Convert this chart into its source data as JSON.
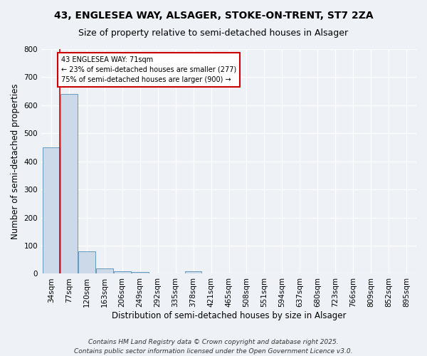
{
  "title": "43, ENGLESEA WAY, ALSAGER, STOKE-ON-TRENT, ST7 2ZA",
  "subtitle": "Size of property relative to semi-detached houses in Alsager",
  "xlabel": "Distribution of semi-detached houses by size in Alsager",
  "ylabel": "Number of semi-detached properties",
  "categories": [
    "34sqm",
    "77sqm",
    "120sqm",
    "163sqm",
    "206sqm",
    "249sqm",
    "292sqm",
    "335sqm",
    "378sqm",
    "421sqm",
    "465sqm",
    "508sqm",
    "551sqm",
    "594sqm",
    "637sqm",
    "680sqm",
    "723sqm",
    "766sqm",
    "809sqm",
    "852sqm",
    "895sqm"
  ],
  "values": [
    450,
    640,
    80,
    20,
    10,
    5,
    0,
    0,
    10,
    0,
    0,
    0,
    0,
    0,
    0,
    0,
    0,
    0,
    0,
    0,
    0
  ],
  "bar_color": "#ccd9e8",
  "bar_edge_color": "#6699bb",
  "vline_x": 0.5,
  "annotation_text": "43 ENGLESEA WAY: 71sqm\n← 23% of semi-detached houses are smaller (277)\n75% of semi-detached houses are larger (900) →",
  "annotation_box_color": "#ffffff",
  "annotation_box_edge": "#cc0000",
  "vline_color": "#cc0000",
  "ylim": [
    0,
    800
  ],
  "yticks": [
    0,
    100,
    200,
    300,
    400,
    500,
    600,
    700,
    800
  ],
  "footer": "Contains HM Land Registry data © Crown copyright and database right 2025.\nContains public sector information licensed under the Open Government Licence v3.0.",
  "bg_color": "#eef2f7",
  "plot_bg_color": "#eef2f7",
  "grid_color": "#ffffff",
  "title_fontsize": 10,
  "subtitle_fontsize": 9,
  "axis_label_fontsize": 8.5,
  "tick_fontsize": 7.5,
  "footer_fontsize": 6.5
}
